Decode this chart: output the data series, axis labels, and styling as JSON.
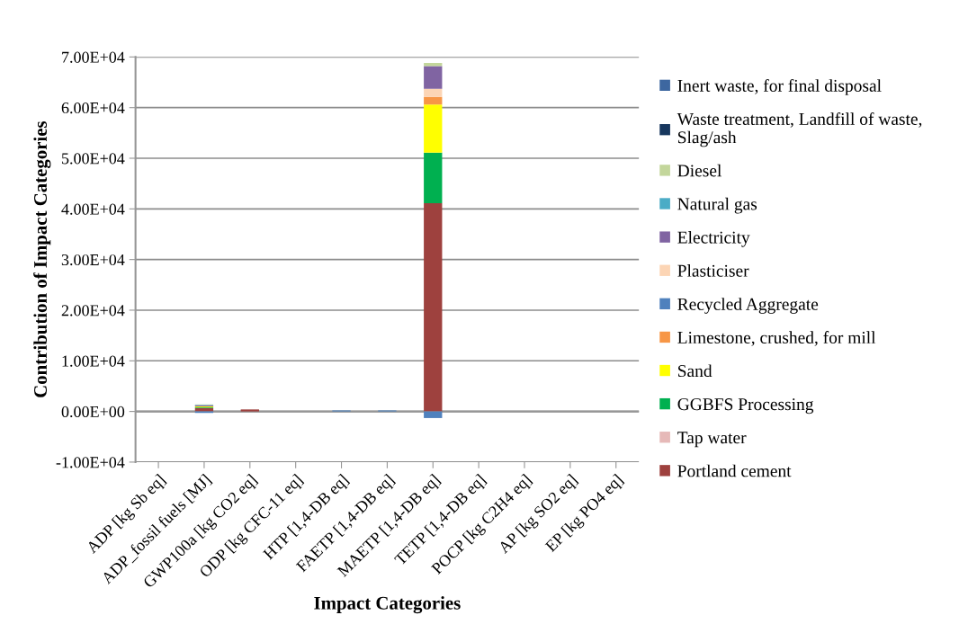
{
  "chart_data": {
    "type": "bar",
    "stacked": true,
    "xlabel": "Impact Categories",
    "ylabel": "Contribution of Impact Categories",
    "categories": [
      "ADP [kg Sb eq]",
      "ADP_fossil fuels [MJ]",
      "GWP100a [kg CO2 eq]",
      "ODP [kg CFC-11 eq]",
      "HTP [1,4-DB eq]",
      "FAETP [1,4-DB eq]",
      "MAETP [1,4-DB eq]",
      "TETP [1,4-DB eq]",
      "POCP [kg C2H4 eq]",
      "AP [kg SO2 eq]",
      "EP [kg PO4 eq]"
    ],
    "series": [
      {
        "name": "Portland cement",
        "color": "#9e413e",
        "values": [
          0,
          700,
          400,
          0,
          0,
          0,
          41100,
          0,
          0,
          0,
          0
        ]
      },
      {
        "name": "Tap water",
        "color": "#e6b9b8",
        "values": [
          0,
          0,
          0,
          0,
          0,
          0,
          0,
          0,
          0,
          0,
          0
        ]
      },
      {
        "name": "GGBFS Processing",
        "color": "#00b050",
        "values": [
          0,
          100,
          0,
          0,
          0,
          0,
          10000,
          0,
          0,
          0,
          0
        ]
      },
      {
        "name": "Sand",
        "color": "#ffff00",
        "values": [
          0,
          200,
          0,
          0,
          0,
          0,
          9500,
          0,
          0,
          0,
          0
        ]
      },
      {
        "name": "Limestone, crushed, for mill",
        "color": "#f79646",
        "values": [
          0,
          0,
          0,
          0,
          0,
          0,
          1500,
          0,
          0,
          0,
          0
        ]
      },
      {
        "name": "Recycled Aggregate",
        "color": "#4f81bd",
        "values": [
          0,
          -300,
          0,
          0,
          200,
          200,
          -1300,
          0,
          0,
          0,
          0
        ]
      },
      {
        "name": "Plasticiser",
        "color": "#fcd5b5",
        "values": [
          0,
          0,
          0,
          0,
          0,
          0,
          1600,
          0,
          0,
          0,
          0
        ]
      },
      {
        "name": "Electricity",
        "color": "#8064a2",
        "values": [
          0,
          200,
          null,
          0,
          0,
          0,
          4500,
          0,
          0,
          0,
          0
        ]
      },
      {
        "name": "Natural gas",
        "color": "#4bacc6",
        "values": [
          0,
          100,
          0,
          0,
          0,
          0,
          0,
          0,
          0,
          0,
          0
        ]
      },
      {
        "name": "Diesel",
        "color": "#c3d69b",
        "values": [
          0,
          100,
          0,
          0,
          0,
          0,
          600,
          0,
          0,
          0,
          0
        ]
      },
      {
        "name": "Waste treatment, Landfill of waste,\nSlag/ash",
        "color": "#17375e",
        "values": [
          0,
          0,
          0,
          0,
          0,
          0,
          0,
          0,
          0,
          0,
          0
        ]
      },
      {
        "name": "Inert waste, for final disposal",
        "color": "#3d67a0",
        "values": [
          0,
          0,
          0,
          0,
          0,
          0,
          0,
          0,
          0,
          0,
          0
        ]
      }
    ],
    "ylim": [
      -10000,
      70000
    ],
    "yticks": [
      {
        "value": -10000,
        "label": "-1.00E+04"
      },
      {
        "value": 0,
        "label": "0.00E+00"
      },
      {
        "value": 10000,
        "label": "1.00E+04"
      },
      {
        "value": 20000,
        "label": "2.00E+04"
      },
      {
        "value": 30000,
        "label": "3.00E+04"
      },
      {
        "value": 40000,
        "label": "4.00E+04"
      },
      {
        "value": 50000,
        "label": "5.00E+04"
      },
      {
        "value": 60000,
        "label": "6.00E+04"
      },
      {
        "value": 70000,
        "label": "7.00E+04"
      }
    ],
    "grid": "y",
    "legend": "right"
  }
}
